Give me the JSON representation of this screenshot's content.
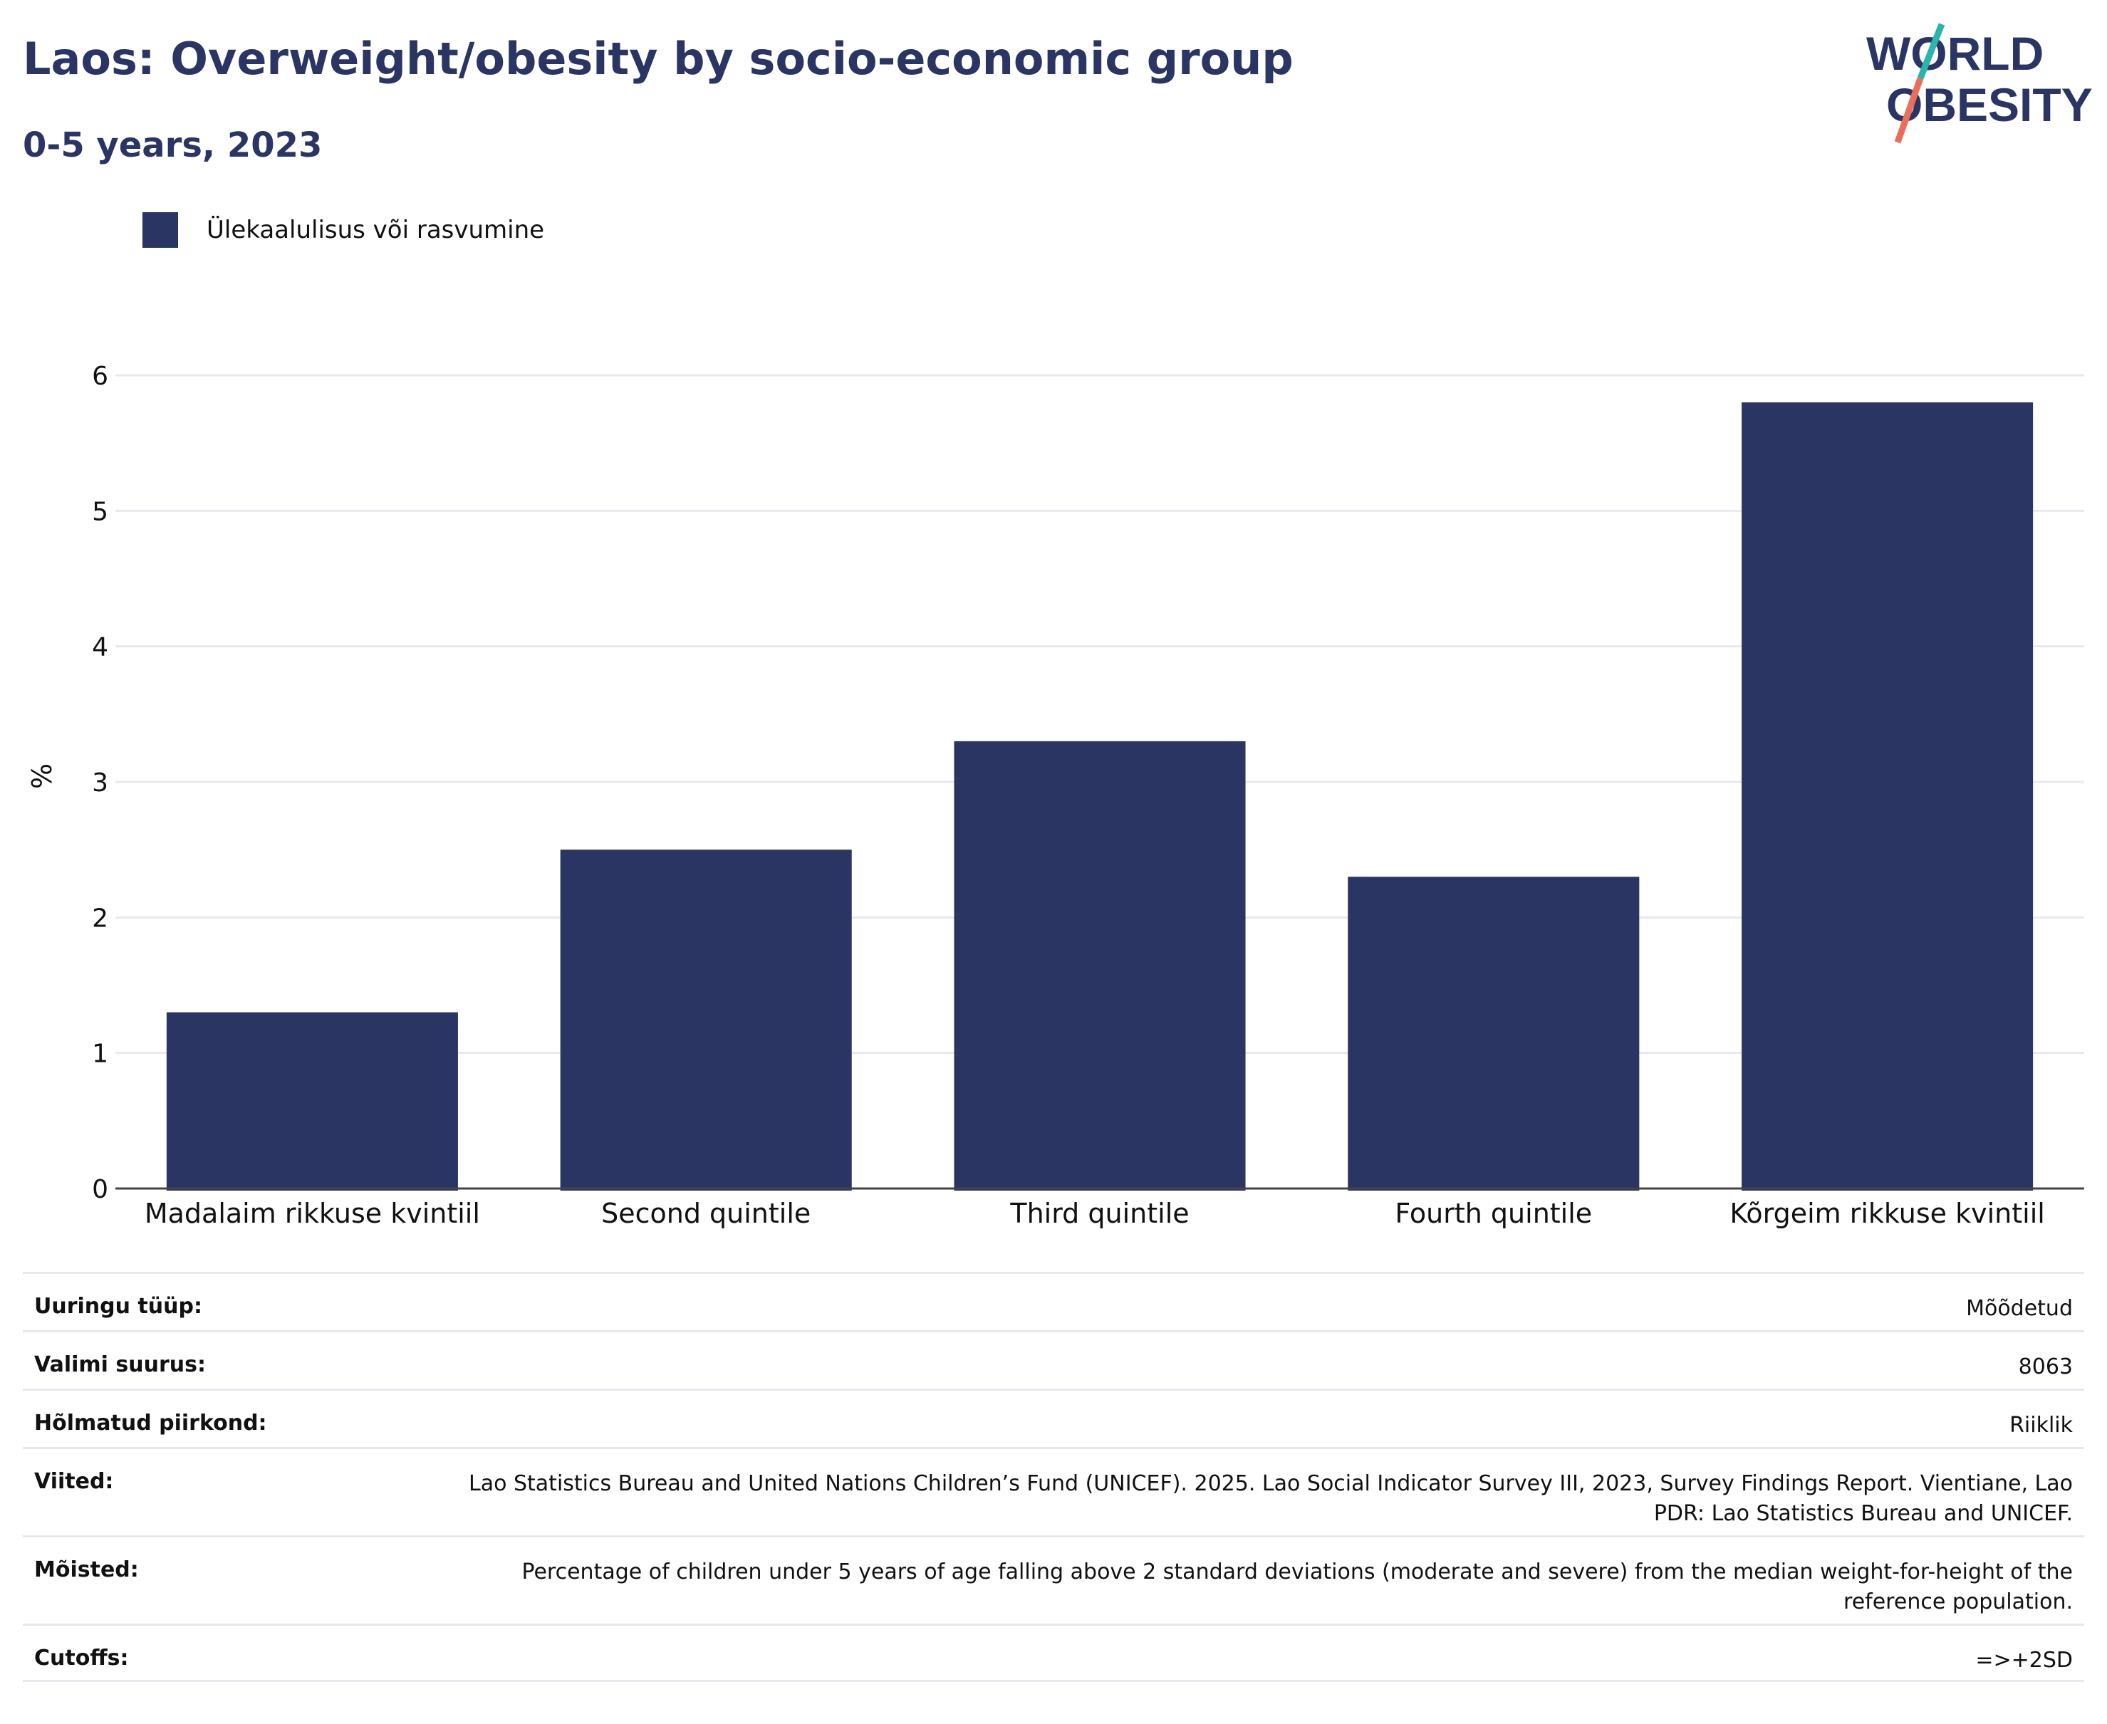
{
  "header": {
    "title": "Laos: Overweight/obesity by socio-economic group",
    "subtitle": "0-5 years, 2023"
  },
  "logo": {
    "line1": "WORLD",
    "line2": "OBESITY"
  },
  "colors": {
    "bar": "#2a3563",
    "text": "#2a3563",
    "grid": "#e8e9ee",
    "logo_teal": "#2bb3ac",
    "logo_coral": "#ea6f5a"
  },
  "chart_data": {
    "type": "bar",
    "categories": [
      "Madalaim rikkuse kvintiil",
      "Second quintile",
      "Third quintile",
      "Fourth quintile",
      "Kõrgeim rikkuse kvintiil"
    ],
    "series": [
      {
        "name": "Ülekaalulisus või rasvumine",
        "values": [
          1.3,
          2.5,
          3.3,
          2.3,
          5.8
        ]
      }
    ],
    "ylabel": "%",
    "xlabel": "",
    "ylim": [
      0,
      6
    ],
    "yticks": [
      0,
      1,
      2,
      3,
      4,
      5,
      6
    ],
    "grid": true,
    "legend_position": "top-left"
  },
  "metadata": [
    {
      "key": "Uuringu tüüp:",
      "value": "Mõõdetud"
    },
    {
      "key": "Valimi suurus:",
      "value": "8063"
    },
    {
      "key": "Hõlmatud piirkond:",
      "value": "Riiklik"
    },
    {
      "key": "Viited:",
      "value": "Lao Statistics Bureau and United Nations Children’s Fund (UNICEF). 2025. Lao Social Indicator Survey III, 2023, Survey Findings Report. Vientiane, Lao PDR: Lao Statistics Bureau and UNICEF."
    },
    {
      "key": "Mõisted:",
      "value": "Percentage of children under 5 years of age falling above 2 standard deviations (moderate and severe) from the median weight-for-height of the reference population."
    },
    {
      "key": "Cutoffs:",
      "value": "=>+2SD"
    }
  ]
}
